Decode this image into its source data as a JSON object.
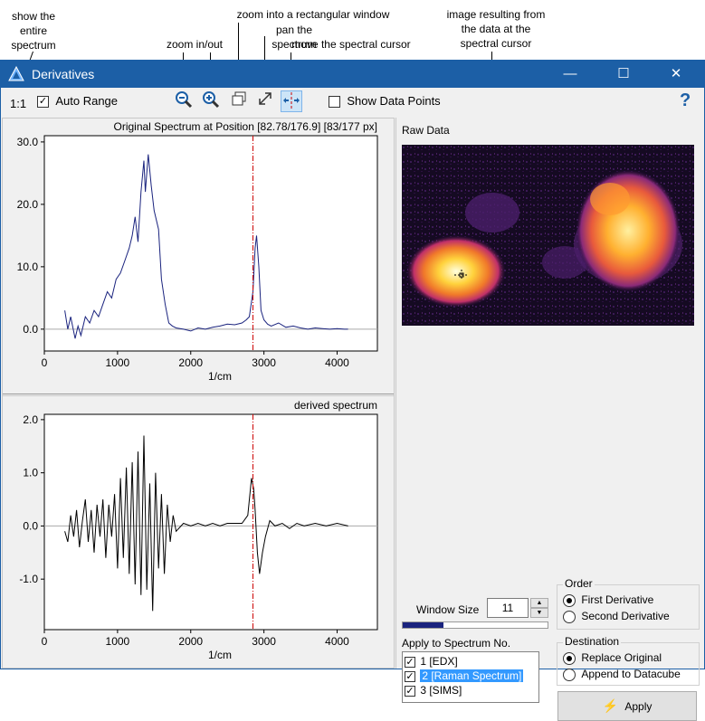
{
  "callouts": {
    "show_entire": [
      "show the",
      "entire",
      "spectrum"
    ],
    "zoom_window": "zoom into a rectangular window",
    "pan": "pan the spectrum",
    "cursor": "move the spectral cursor",
    "zoom_inout": "zoom in/out",
    "image_result": [
      "image resulting from",
      "the data at the",
      "spectral cursor"
    ]
  },
  "window": {
    "title": "Derivatives",
    "minimize": "—",
    "maximize": "☐",
    "close": "✕"
  },
  "toolbar": {
    "scale_label": "1:1",
    "auto_range_label": "Auto Range",
    "auto_range_checked": true,
    "show_points_label": "Show Data Points",
    "show_points_checked": false,
    "help": "?"
  },
  "chart_data": [
    {
      "type": "line",
      "title": "Original Spectrum at Position [82.78/176.9] [83/177 px]",
      "xlabel": "1/cm",
      "xlim": [
        0,
        4550
      ],
      "ylim": [
        -3.5,
        31
      ],
      "xticks": [
        "0",
        "1000",
        "2000",
        "3000",
        "4000"
      ],
      "yticks": [
        "0.0",
        "10.0",
        "20.0",
        "30.0"
      ],
      "cursor_x": 2850,
      "series": [
        {
          "x": [
            280,
            320,
            360,
            420,
            460,
            500,
            560,
            620,
            680,
            740,
            800,
            860,
            920,
            980,
            1040,
            1100,
            1160,
            1200,
            1240,
            1280,
            1320,
            1360,
            1380,
            1420,
            1460,
            1500,
            1560,
            1600,
            1650,
            1700,
            1750,
            1800,
            1900,
            2000,
            2100,
            2200,
            2300,
            2400,
            2500,
            2600,
            2700,
            2760,
            2800,
            2850,
            2880,
            2900,
            2930,
            2960,
            3000,
            3050,
            3100,
            3200,
            3300,
            3400,
            3500,
            3600,
            3700,
            3800,
            3900,
            4000,
            4100,
            4150
          ],
          "y": [
            3,
            0,
            2,
            -1.5,
            0.5,
            -1,
            2,
            1,
            3,
            2,
            4,
            6,
            5,
            8,
            9,
            11,
            13,
            15,
            18,
            14,
            22,
            27,
            22,
            28,
            23,
            19,
            16,
            8,
            4,
            1,
            0.5,
            0.2,
            0,
            -0.3,
            0.2,
            0,
            0.3,
            0.5,
            0.8,
            0.7,
            1,
            1.5,
            2,
            6,
            13,
            15,
            10,
            3,
            1.5,
            0.8,
            0.5,
            1,
            0.3,
            0.5,
            0.2,
            0,
            0.2,
            0.1,
            0,
            0.1,
            0,
            0
          ]
        }
      ]
    },
    {
      "type": "line",
      "title": "derived spectrum",
      "xlabel": "1/cm",
      "xlim": [
        0,
        4550
      ],
      "ylim": [
        -1.95,
        2.1
      ],
      "xticks": [
        "0",
        "1000",
        "2000",
        "3000",
        "4000"
      ],
      "yticks": [
        "-1.0",
        "0.0",
        "1.0",
        "2.0"
      ],
      "cursor_x": 2850,
      "series": [
        {
          "x": [
            280,
            320,
            360,
            400,
            440,
            480,
            520,
            560,
            600,
            640,
            680,
            720,
            760,
            800,
            840,
            880,
            920,
            960,
            1000,
            1040,
            1080,
            1120,
            1160,
            1200,
            1240,
            1280,
            1320,
            1360,
            1400,
            1440,
            1480,
            1520,
            1560,
            1600,
            1640,
            1680,
            1720,
            1760,
            1800,
            1900,
            2000,
            2100,
            2200,
            2300,
            2400,
            2500,
            2600,
            2700,
            2780,
            2830,
            2860,
            2880,
            2910,
            2940,
            2980,
            3020,
            3080,
            3150,
            3250,
            3350,
            3450,
            3550,
            3700,
            3850,
            4000,
            4150
          ],
          "y": [
            -0.1,
            -0.3,
            0.2,
            -0.2,
            0.3,
            -0.4,
            0.1,
            0.5,
            -0.3,
            0.3,
            -0.5,
            0.4,
            -0.2,
            0.5,
            -0.6,
            0.4,
            -0.2,
            0.6,
            -0.8,
            0.9,
            -0.6,
            1.1,
            -0.9,
            1.2,
            -1.1,
            1.4,
            -1.3,
            1.7,
            -1.2,
            0.8,
            -1.6,
            1.0,
            -0.8,
            0.6,
            -0.9,
            0.4,
            -0.3,
            0.2,
            -0.1,
            0.05,
            0,
            0.05,
            0,
            0.05,
            0,
            0.05,
            0.05,
            0.05,
            0.2,
            0.9,
            0.7,
            0.3,
            -0.5,
            -0.9,
            -0.5,
            -0.2,
            0.1,
            0,
            0.05,
            -0.05,
            0.05,
            0,
            0.05,
            0,
            0.05,
            0
          ]
        }
      ]
    }
  ],
  "raw_data": {
    "label": "Raw Data"
  },
  "window_size": {
    "label": "Window Size",
    "value": "11",
    "progress": 0.28
  },
  "order": {
    "label": "Order",
    "options": [
      {
        "label": "First Derivative",
        "selected": true
      },
      {
        "label": "Second Derivative",
        "selected": false
      }
    ]
  },
  "apply_to": {
    "label": "Apply to Spectrum No.",
    "items": [
      {
        "label": "1 [EDX]",
        "checked": true,
        "selected": false
      },
      {
        "label": "2 [Raman Spectrum]",
        "checked": true,
        "selected": true
      },
      {
        "label": "3 [SIMS]",
        "checked": true,
        "selected": false
      }
    ]
  },
  "destination": {
    "label": "Destination",
    "options": [
      {
        "label": "Replace Original",
        "selected": true
      },
      {
        "label": "Append to Datacube",
        "selected": false
      }
    ]
  },
  "apply_button": {
    "label": "Apply"
  },
  "colors": {
    "accent": "#1c5fa6",
    "spectrum1": "#1a237e",
    "cursor": "#cc0000",
    "selection": "#3399ff"
  }
}
